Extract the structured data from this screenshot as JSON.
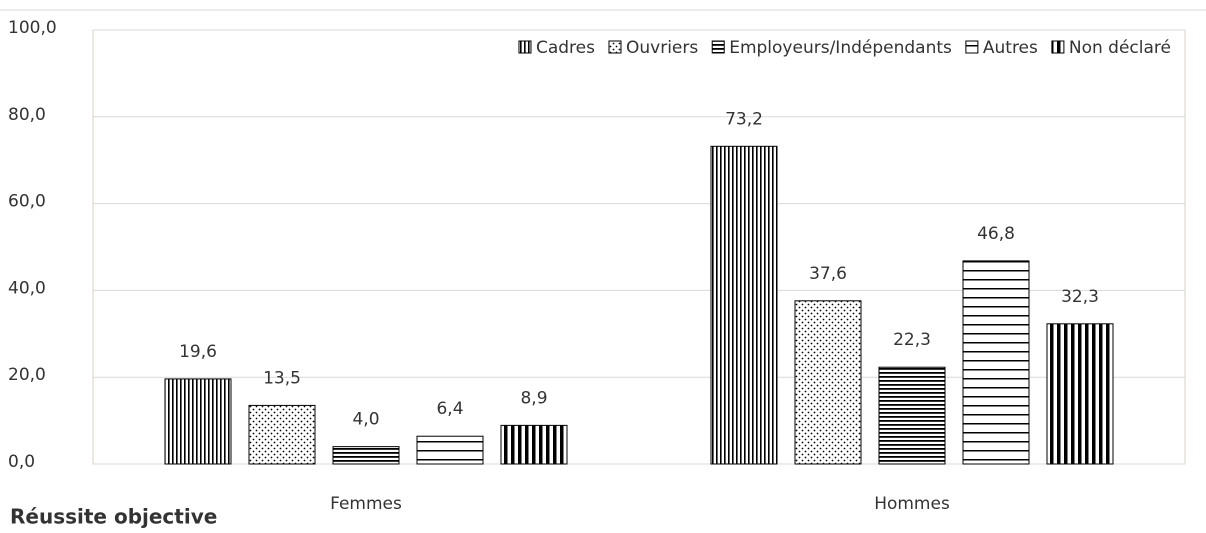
{
  "chart_data": {
    "type": "bar",
    "annotation": "Réussite objective",
    "categories": [
      "Femmes",
      "Hommes"
    ],
    "series": [
      {
        "name": "Cadres",
        "color": "#000000",
        "pattern": "vertical-thin",
        "values": [
          19.6,
          73.2
        ],
        "value_labels": [
          "19,6",
          "73,2"
        ]
      },
      {
        "name": "Ouvriers",
        "color": "#000000",
        "pattern": "dots",
        "values": [
          13.5,
          37.6
        ],
        "value_labels": [
          "13,5",
          "37,6"
        ]
      },
      {
        "name": "Employeurs/Indépendants",
        "color": "#000000",
        "pattern": "horizontal-thin",
        "values": [
          4.0,
          22.3
        ],
        "value_labels": [
          "4,0",
          "22,3"
        ]
      },
      {
        "name": "Autres",
        "color": "#000000",
        "pattern": "horizontal-wide",
        "values": [
          6.4,
          46.8
        ],
        "value_labels": [
          "6,4",
          "46,8"
        ]
      },
      {
        "name": "Non déclaré",
        "color": "#000000",
        "pattern": "vertical-thick",
        "values": [
          8.9,
          32.3
        ],
        "value_labels": [
          "8,9",
          "32,3"
        ]
      }
    ],
    "ylim": [
      0,
      100
    ],
    "yticks": [
      {
        "value": 0,
        "label": "0,0"
      },
      {
        "value": 20,
        "label": "20,0"
      },
      {
        "value": 40,
        "label": "40,0"
      },
      {
        "value": 60,
        "label": "60,0"
      },
      {
        "value": 80,
        "label": "80,0"
      },
      {
        "value": 100,
        "label": "100,0"
      }
    ],
    "grid": true,
    "legend": "top-right"
  }
}
